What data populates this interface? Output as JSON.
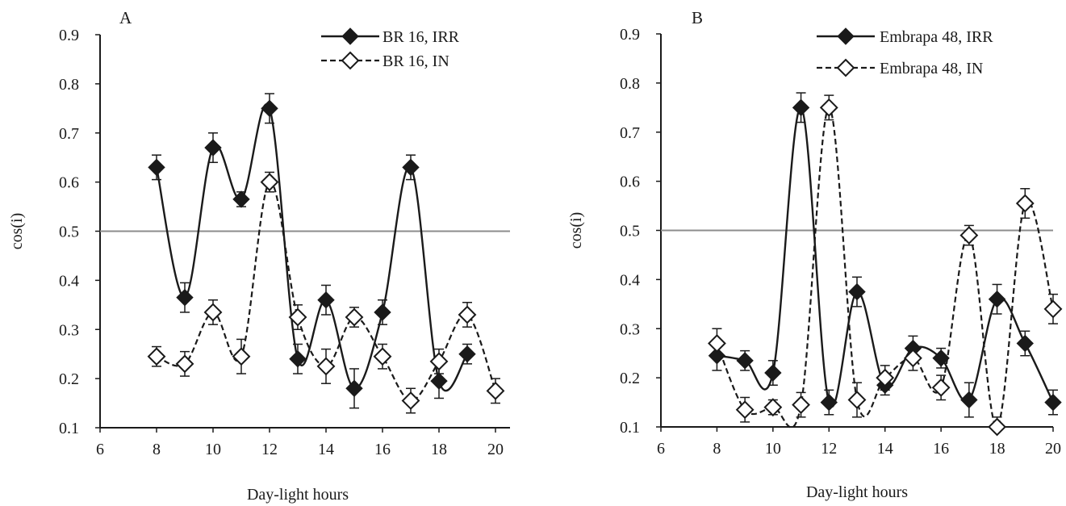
{
  "colors": {
    "ink": "#1a1a1a",
    "reference_line": "#8c8c8c",
    "open_marker_fill": "#ffffff"
  },
  "chart_data": [
    {
      "panel_label": "A",
      "type": "line",
      "xlabel": "Day-light hours",
      "ylabel": "cos(i)",
      "xlim": [
        6,
        20
      ],
      "ylim": [
        0.1,
        0.9
      ],
      "x_ticks": [
        "6",
        "8",
        "10",
        "12",
        "14",
        "16",
        "18",
        "20"
      ],
      "y_ticks": [
        "0.1",
        "0.2",
        "0.3",
        "0.4",
        "0.5",
        "0.6",
        "0.7",
        "0.8",
        "0.9"
      ],
      "reference_line_y": 0.5,
      "legend_position": "top-right",
      "series": [
        {
          "name": "BR 16, IRR",
          "style": "solid",
          "marker": "filled-diamond",
          "x": [
            8,
            9,
            10,
            11,
            12,
            13,
            14,
            15,
            16,
            17,
            18,
            19
          ],
          "values": [
            0.63,
            0.365,
            0.67,
            0.565,
            0.75,
            0.24,
            0.36,
            0.18,
            0.335,
            0.63,
            0.195,
            0.25
          ],
          "error": [
            0.025,
            0.03,
            0.03,
            0.015,
            0.03,
            0.03,
            0.03,
            0.04,
            0.025,
            0.025,
            0.035,
            0.02
          ]
        },
        {
          "name": "BR 16, IN",
          "style": "dashed",
          "marker": "open-diamond",
          "x": [
            8,
            9,
            10,
            11,
            12,
            13,
            14,
            15,
            16,
            17,
            18,
            19,
            20
          ],
          "values": [
            0.245,
            0.23,
            0.335,
            0.245,
            0.6,
            0.325,
            0.225,
            0.325,
            0.245,
            0.155,
            0.235,
            0.33,
            0.175
          ],
          "error": [
            0.02,
            0.025,
            0.025,
            0.035,
            0.02,
            0.025,
            0.035,
            0.02,
            0.025,
            0.025,
            0.025,
            0.025,
            0.025
          ]
        }
      ]
    },
    {
      "panel_label": "B",
      "type": "line",
      "xlabel": "Day-light hours",
      "ylabel": "cos(i)",
      "xlim": [
        6,
        20
      ],
      "ylim": [
        0.1,
        0.9
      ],
      "x_ticks": [
        "6",
        "8",
        "10",
        "12",
        "14",
        "16",
        "18",
        "20"
      ],
      "y_ticks": [
        "0.1",
        "0.2",
        "0.3",
        "0.4",
        "0.5",
        "0.6",
        "0.7",
        "0.8",
        "0.9"
      ],
      "reference_line_y": 0.5,
      "legend_position": "top-right",
      "series": [
        {
          "name": "Embrapa 48, IRR",
          "style": "solid",
          "marker": "filled-diamond",
          "x": [
            8,
            9,
            10,
            11,
            12,
            13,
            14,
            15,
            16,
            17,
            18,
            19,
            20
          ],
          "values": [
            0.245,
            0.235,
            0.21,
            0.75,
            0.15,
            0.375,
            0.185,
            0.26,
            0.24,
            0.155,
            0.36,
            0.27,
            0.15
          ],
          "error": [
            0.03,
            0.02,
            0.025,
            0.03,
            0.025,
            0.03,
            0.02,
            0.025,
            0.02,
            0.035,
            0.03,
            0.025,
            0.025
          ]
        },
        {
          "name": "Embrapa 48, IN",
          "style": "dashed",
          "marker": "open-diamond",
          "x": [
            8,
            9,
            10,
            11,
            12,
            13,
            14,
            15,
            16,
            17,
            18,
            19,
            20
          ],
          "values": [
            0.27,
            0.135,
            0.14,
            0.145,
            0.75,
            0.155,
            0.2,
            0.24,
            0.18,
            0.49,
            0.1,
            0.555,
            0.34
          ],
          "error": [
            0.03,
            0.025,
            0.015,
            0.025,
            0.025,
            0.035,
            0.025,
            0.025,
            0.025,
            0.02,
            0.02,
            0.03,
            0.03
          ]
        }
      ]
    }
  ]
}
